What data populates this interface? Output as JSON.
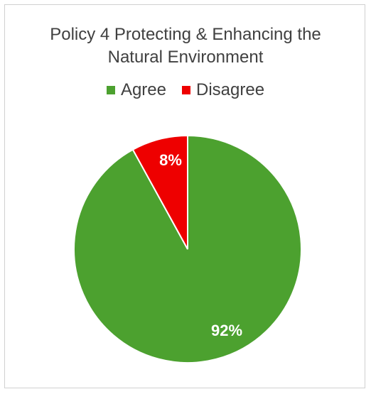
{
  "chart_data": {
    "type": "pie",
    "title_lines": [
      "Policy 4 Protecting & Enhancing the",
      "Natural Environment"
    ],
    "legend_position": "top",
    "slices": [
      {
        "name": "Agree",
        "value": 92,
        "label": "92%",
        "color": "#4ca12f"
      },
      {
        "name": "Disagree",
        "value": 8,
        "label": "8%",
        "color": "#ee0000"
      }
    ]
  }
}
